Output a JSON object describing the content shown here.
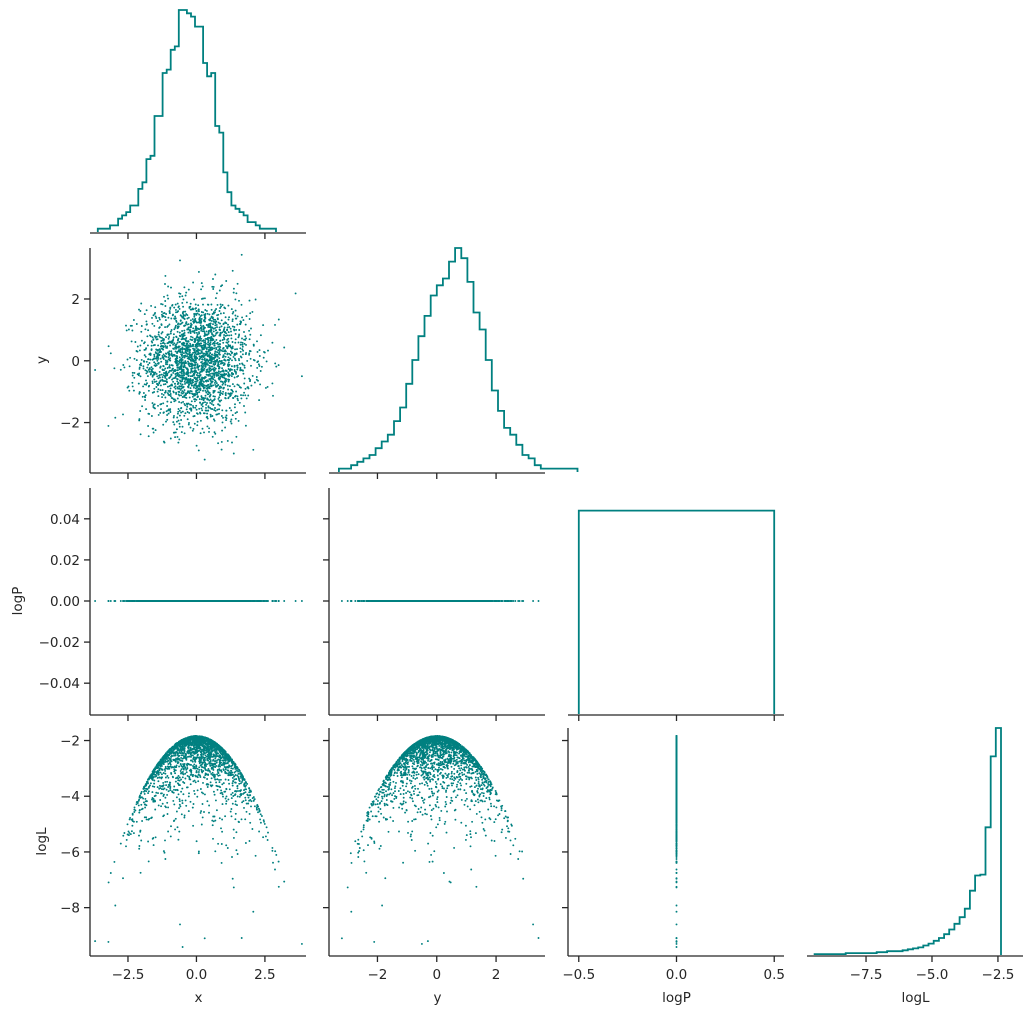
{
  "chart_data": {
    "type": "corner",
    "color": "#008080",
    "axis_color": "#262626",
    "variables": [
      {
        "key": "x",
        "label": "x",
        "range": [
          -3.85,
          4.0
        ],
        "ticks": [
          -2.5,
          0.0,
          2.5
        ],
        "tick_labels": [
          "−2.5",
          "0.0",
          "2.5"
        ]
      },
      {
        "key": "y",
        "label": "y",
        "range": [
          -3.6,
          3.65
        ],
        "ticks": [
          -2,
          0,
          2
        ],
        "tick_labels": [
          "−2",
          "0",
          "2"
        ]
      },
      {
        "key": "logP",
        "label": "logP",
        "range": [
          -0.55,
          0.55
        ],
        "ticks": [
          -0.5,
          0.0,
          0.5
        ],
        "tick_labels": [
          "−0.5",
          "0.0",
          "0.5"
        ],
        "row_range": [
          -0.055,
          0.055
        ],
        "row_ticks": [
          -0.04,
          -0.02,
          0.0,
          0.02,
          0.04
        ],
        "row_tick_labels": [
          "−0.04",
          "−0.02",
          "0.00",
          "0.02",
          "0.04"
        ]
      },
      {
        "key": "logL",
        "label": "logL",
        "range": [
          -9.7,
          -1.55
        ],
        "ticks": [
          -7.5,
          -5.0,
          -2.5
        ],
        "tick_labels": [
          "−7.5",
          "−5.0",
          "−2.5"
        ],
        "row_range": [
          -9.7,
          -1.55
        ],
        "row_ticks": [
          -8,
          -6,
          -4,
          -2
        ],
        "row_tick_labels": [
          "−8",
          "−6",
          "−4",
          "−2"
        ]
      }
    ],
    "diagonal": [
      {
        "key": "x",
        "edges_start": -3.6,
        "bin_width": 0.1478,
        "counts": [
          1,
          1,
          1,
          2,
          2,
          4,
          5,
          6,
          8,
          8,
          13,
          15,
          22,
          23,
          35,
          35,
          48,
          49,
          55,
          56,
          67,
          67,
          66,
          65,
          62,
          62,
          51,
          47,
          48,
          32,
          30,
          18,
          12,
          8,
          7,
          6,
          5,
          3,
          3,
          2,
          1,
          1,
          1,
          1
        ]
      },
      {
        "key": "y",
        "edges_start": -3.3,
        "bin_width": 0.2063,
        "counts": [
          1,
          1,
          2,
          3,
          4,
          5,
          7,
          9,
          11,
          15,
          19,
          26,
          33,
          40,
          46,
          52,
          55,
          57,
          62,
          66,
          63,
          56,
          47,
          42,
          33,
          24,
          18,
          13,
          11,
          8,
          5,
          4,
          2,
          1,
          1,
          1,
          1,
          1,
          1
        ]
      },
      {
        "key": "logP",
        "edges_start": -0.5,
        "bin_width": 1.0,
        "counts": [
          1
        ]
      },
      {
        "key": "logL",
        "edges_start": -9.45,
        "bin_width": 0.1963,
        "counts": [
          1,
          1,
          1,
          1,
          1,
          1,
          2,
          2,
          2,
          2,
          2,
          2,
          3,
          3,
          4,
          4,
          4,
          5,
          6,
          7,
          8,
          10,
          12,
          15,
          18,
          22,
          27,
          33,
          40,
          49,
          68,
          84,
          85,
          135,
          210,
          240
        ]
      }
    ],
    "scatter": {
      "point_count": 2400,
      "distribution": "x ~ N(0,1), y ~ N(0,1), logP = 0, logL = -1.84 - (x^2+y^2)/2"
    },
    "x_axis_labels": [
      "x",
      "y",
      "logP",
      "logL"
    ],
    "y_axis_labels": [
      "y",
      "logP",
      "logL"
    ]
  }
}
